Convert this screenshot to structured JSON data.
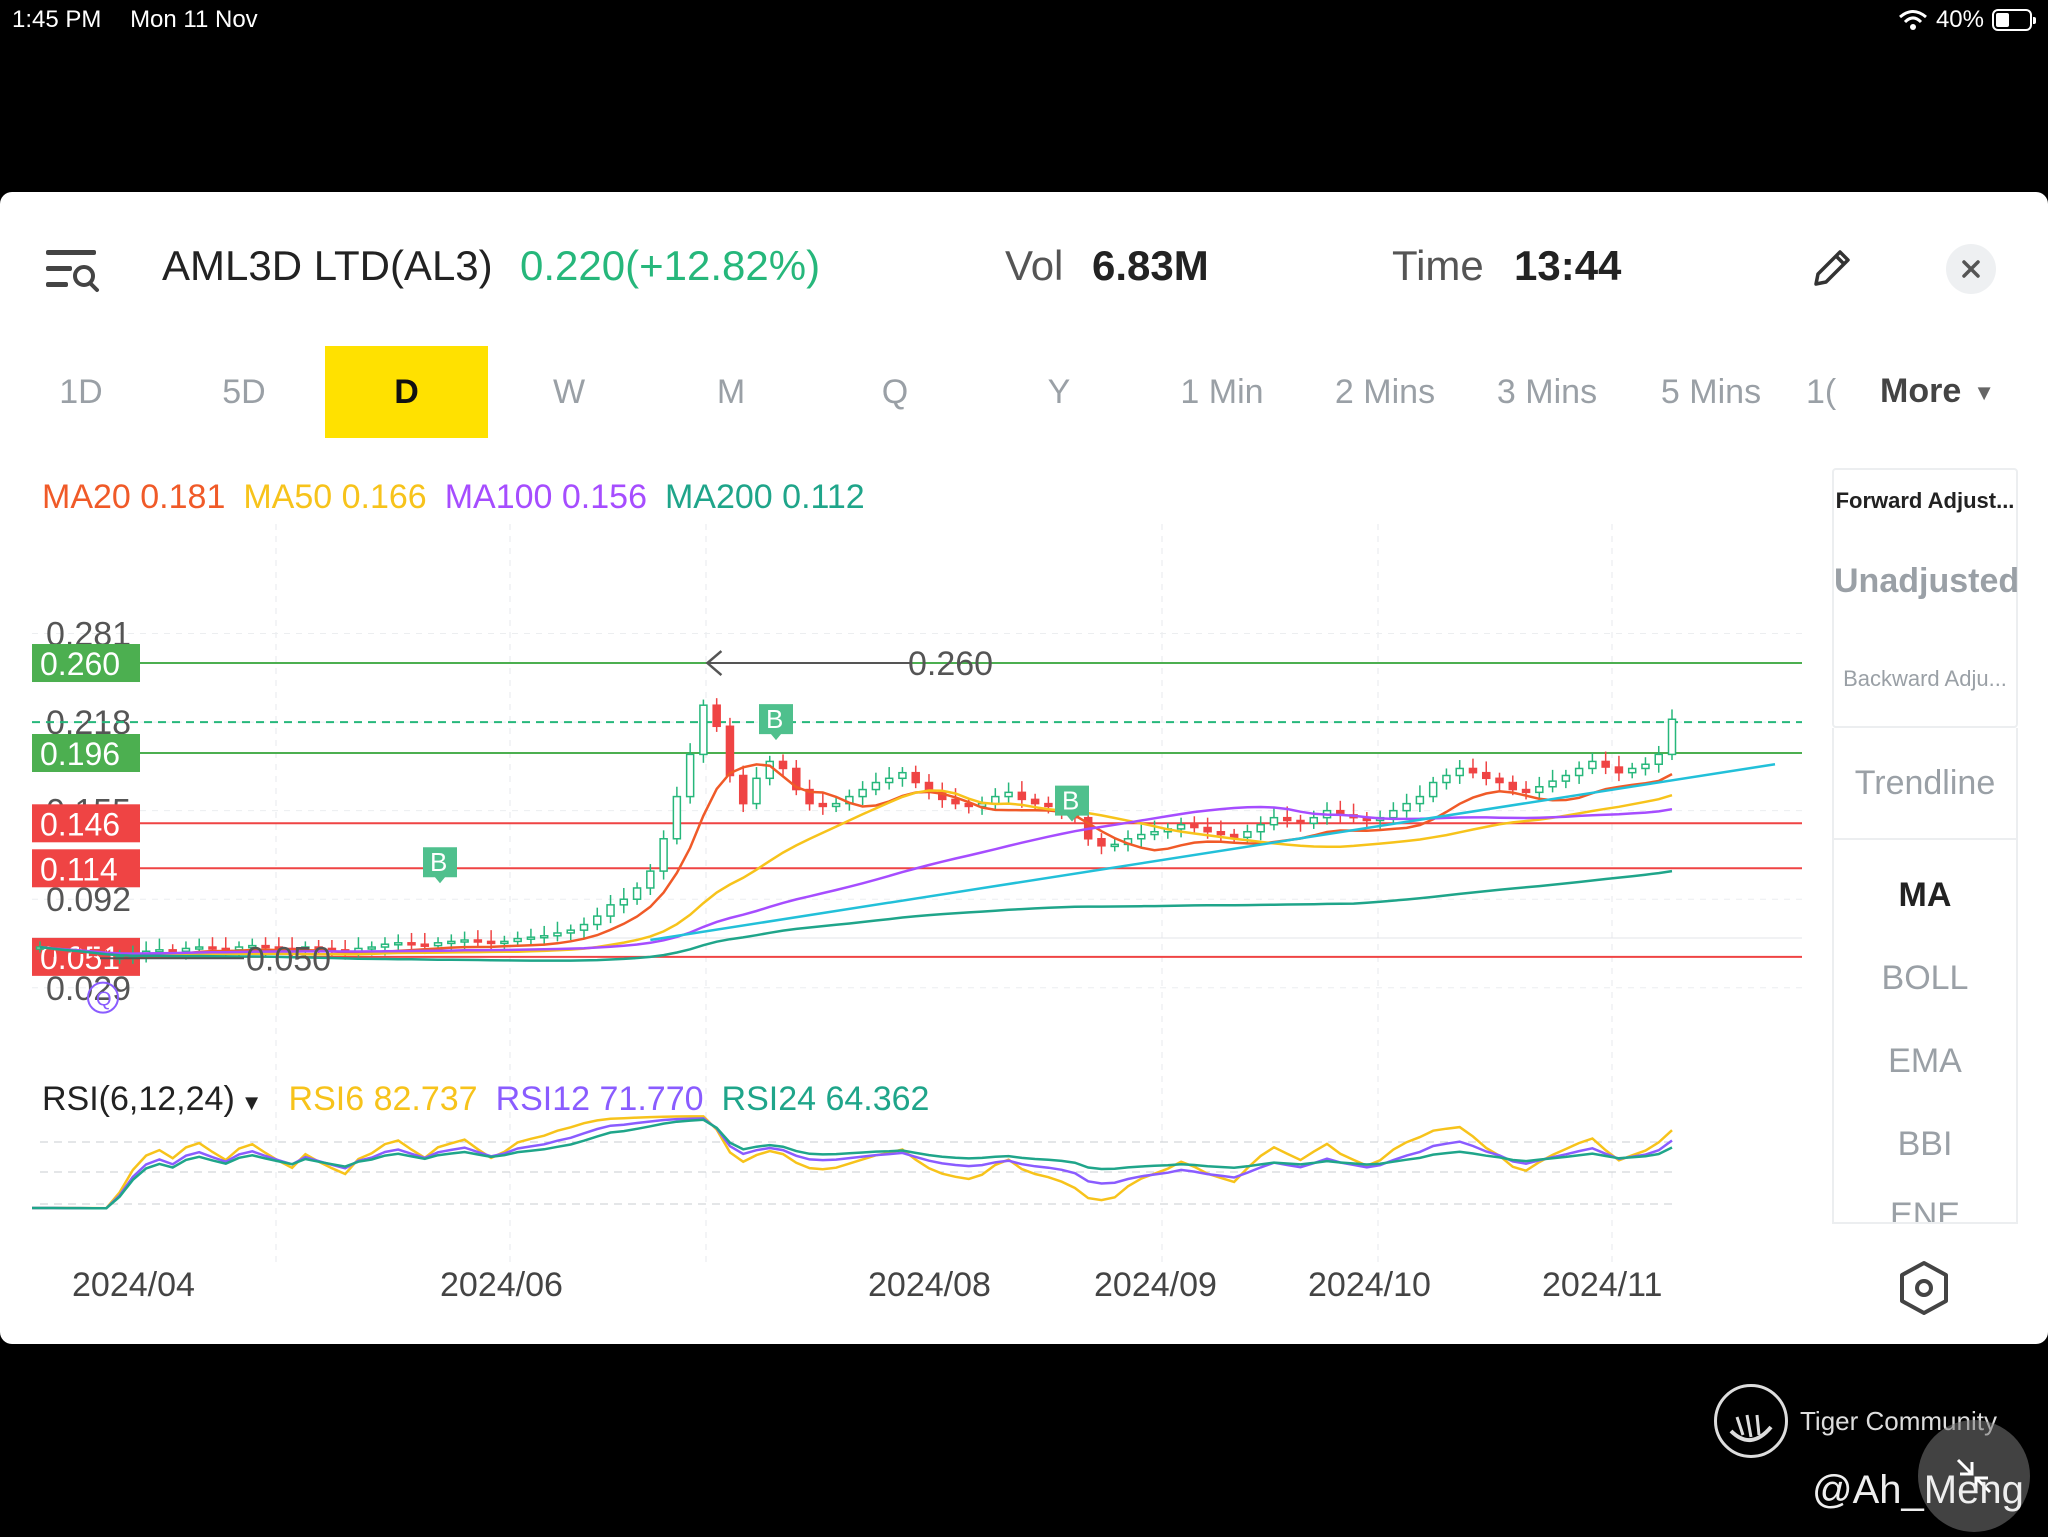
{
  "status_bar": {
    "time": "1:45 PM",
    "date": "Mon 11 Nov",
    "battery": "40%"
  },
  "header": {
    "stock_name": "AML3D LTD(AL3)",
    "price": "0.220(+12.82%)",
    "vol_label": "Vol",
    "vol_value": "6.83M",
    "time_label": "Time",
    "time_value": "13:44"
  },
  "tabs": [
    "1D",
    "5D",
    "D",
    "W",
    "M",
    "Q",
    "Y",
    "1 Min",
    "2 Mins",
    "3 Mins",
    "5 Mins",
    "1("
  ],
  "active_tab": "D",
  "more_label": "More",
  "ma_legend": [
    {
      "label": "MA20 0.181",
      "color": "#f05a28"
    },
    {
      "label": "MA50 0.166",
      "color": "#f7c31b"
    },
    {
      "label": "MA100 0.156",
      "color": "#a64dff"
    },
    {
      "label": "MA200 0.112",
      "color": "#1fa58a"
    }
  ],
  "side_panel": {
    "adjust_forward": "Forward Adjust...",
    "adjust_unadjusted": "Unadjusted",
    "adjust_backward": "Backward Adju...",
    "trendline": "Trendline",
    "indicators": [
      "MA",
      "BOLL",
      "EMA",
      "BBI",
      "ENE"
    ],
    "active_indicator": "MA"
  },
  "rsi_legend": {
    "title": "RSI(6,12,24)",
    "items": [
      {
        "label": "RSI6 82.737",
        "color": "#f7c31b"
      },
      {
        "label": "RSI12 71.770",
        "color": "#8a5cff"
      },
      {
        "label": "RSI24 64.362",
        "color": "#1fa58a"
      }
    ]
  },
  "colors": {
    "up": "#26b77b",
    "down": "#ef4444",
    "support": "#4caf50",
    "resistance": "#ef4444",
    "ma20": "#f05a28",
    "ma50": "#f7c31b",
    "ma100": "#a64dff",
    "ma200": "#1fa58a",
    "trend": "#22c0d9"
  },
  "chart_data": {
    "type": "candlestick",
    "ylim": [
      0.025,
      0.285
    ],
    "y_tick_labels": [
      "0.281",
      "0.218",
      "0.155",
      "0.092",
      "0.029"
    ],
    "x_tick_labels": [
      "2024/04",
      "2024/06",
      "2024/08",
      "2024/09",
      "2024/10",
      "2024/11"
    ],
    "price_lines": [
      {
        "value": 0.26,
        "label": "0.260",
        "kind": "support",
        "color": "#4caf50"
      },
      {
        "value": 0.196,
        "label": "0.196",
        "kind": "support",
        "color": "#4caf50"
      },
      {
        "value": 0.146,
        "label": "0.146",
        "kind": "resistance",
        "color": "#ef4444"
      },
      {
        "value": 0.114,
        "label": "0.114",
        "kind": "resistance",
        "color": "#ef4444"
      },
      {
        "value": 0.051,
        "label": "0.051",
        "kind": "resistance",
        "color": "#ef4444"
      }
    ],
    "current_price_line": {
      "value": 0.218
    },
    "annotations": [
      {
        "text": "0.260",
        "value": 0.26,
        "kind": "high-marker"
      },
      {
        "text": "0.050",
        "value": 0.05,
        "kind": "low-marker"
      }
    ],
    "buy_signals": [
      "B",
      "B",
      "B"
    ],
    "q_marker": "Q",
    "close_series": [
      0.058,
      0.056,
      0.055,
      0.054,
      0.052,
      0.05,
      0.051,
      0.053,
      0.055,
      0.056,
      0.055,
      0.057,
      0.058,
      0.057,
      0.056,
      0.058,
      0.059,
      0.058,
      0.057,
      0.056,
      0.058,
      0.057,
      0.056,
      0.055,
      0.057,
      0.058,
      0.06,
      0.061,
      0.06,
      0.059,
      0.061,
      0.062,
      0.063,
      0.062,
      0.061,
      0.062,
      0.064,
      0.065,
      0.066,
      0.068,
      0.07,
      0.074,
      0.08,
      0.088,
      0.092,
      0.1,
      0.112,
      0.135,
      0.165,
      0.195,
      0.23,
      0.215,
      0.18,
      0.16,
      0.178,
      0.19,
      0.185,
      0.17,
      0.16,
      0.158,
      0.16,
      0.165,
      0.17,
      0.175,
      0.178,
      0.182,
      0.175,
      0.168,
      0.163,
      0.16,
      0.158,
      0.16,
      0.165,
      0.168,
      0.163,
      0.16,
      0.158,
      0.155,
      0.15,
      0.135,
      0.13,
      0.131,
      0.135,
      0.138,
      0.14,
      0.142,
      0.145,
      0.143,
      0.14,
      0.138,
      0.136,
      0.14,
      0.145,
      0.15,
      0.148,
      0.146,
      0.15,
      0.155,
      0.152,
      0.15,
      0.148,
      0.15,
      0.155,
      0.16,
      0.165,
      0.175,
      0.18,
      0.185,
      0.182,
      0.178,
      0.175,
      0.17,
      0.168,
      0.172,
      0.176,
      0.18,
      0.185,
      0.19,
      0.186,
      0.182,
      0.185,
      0.188,
      0.195,
      0.22
    ],
    "ma20_end": 0.181,
    "ma50_end": 0.166,
    "ma100_end": 0.156,
    "ma200_end": 0.112,
    "rsi": {
      "rsi6": 82.737,
      "rsi12": 71.77,
      "rsi24": 64.362
    }
  },
  "watermark": {
    "brand": "Tiger Community",
    "user": "@Ah_Meng"
  }
}
